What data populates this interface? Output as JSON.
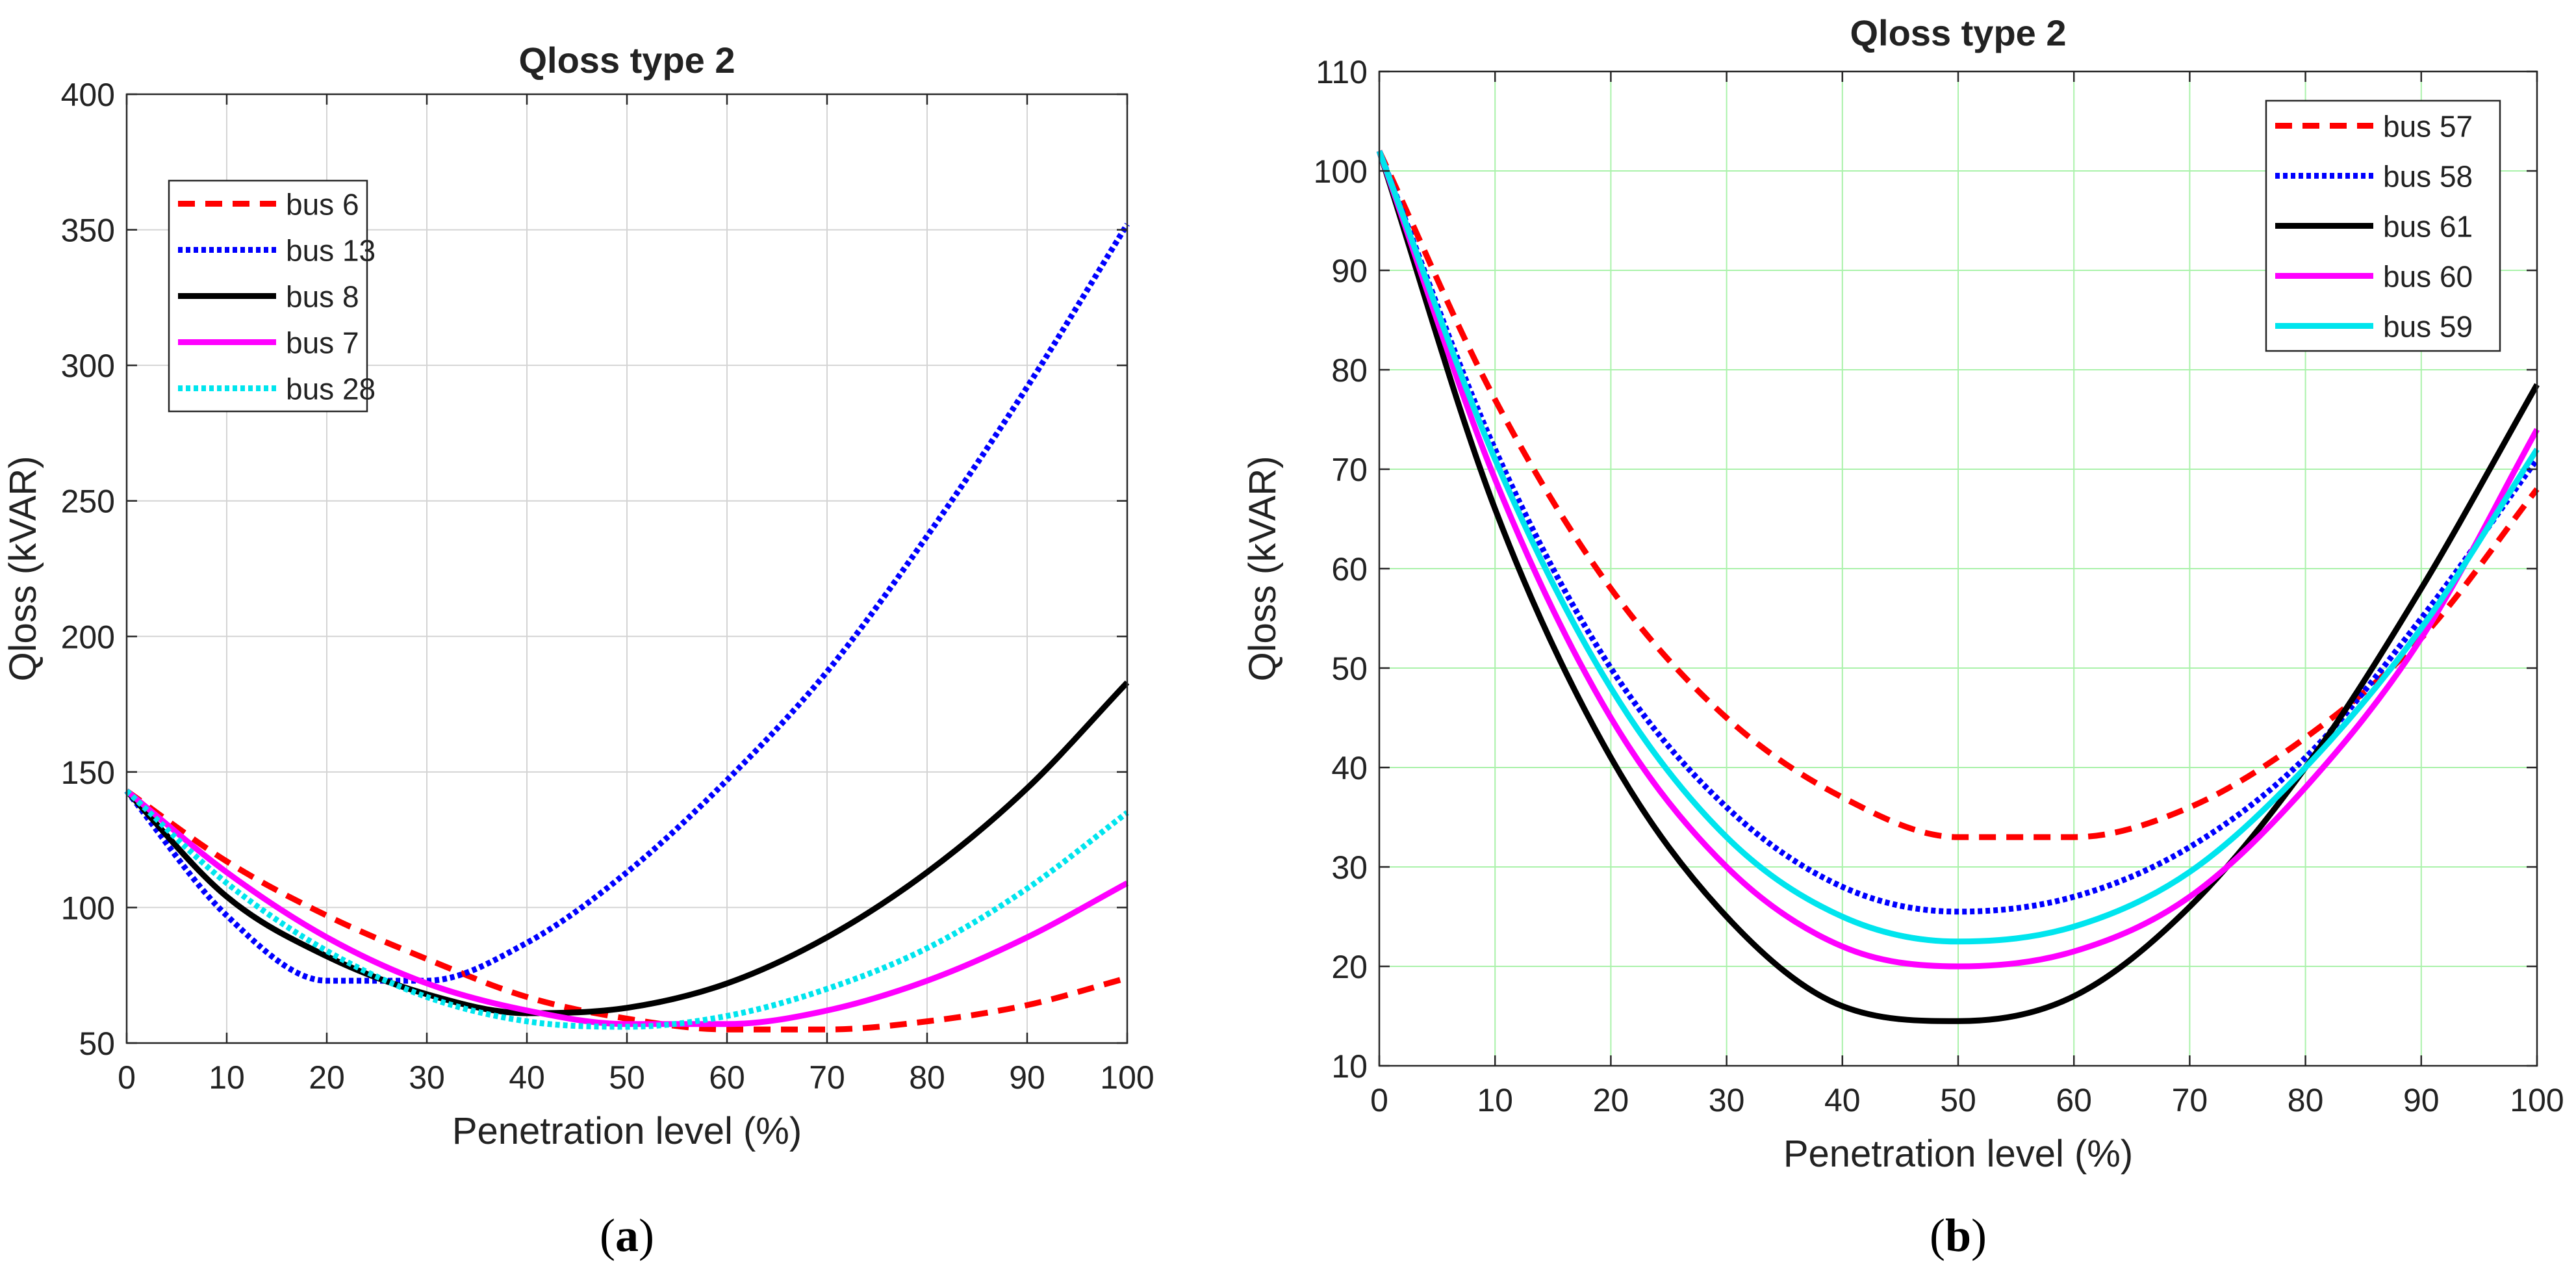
{
  "chart_data": [
    {
      "type": "line",
      "panel_label_prefix": "(",
      "panel_label": "a",
      "panel_label_suffix": ")",
      "title": "Qloss type 2",
      "xlabel": "Penetration level (%)",
      "ylabel": "Qloss (kVAR)",
      "xlim": [
        0,
        100
      ],
      "ylim": [
        50,
        400
      ],
      "xticks": [
        0,
        10,
        20,
        30,
        40,
        50,
        60,
        70,
        80,
        90,
        100
      ],
      "yticks": [
        50,
        100,
        150,
        200,
        250,
        300,
        350,
        400
      ],
      "grid": true,
      "legend_position": "top-left",
      "series": [
        {
          "name": "bus 6",
          "color": "#ff0000",
          "style": "dashed",
          "x": [
            0,
            10,
            20,
            30,
            40,
            50,
            60,
            70,
            80,
            90,
            100
          ],
          "values": [
            143,
            117,
            97,
            81,
            67,
            59,
            55,
            55,
            58,
            64,
            74
          ]
        },
        {
          "name": "bus 13",
          "color": "#0000ff",
          "style": "dotted",
          "x": [
            0,
            10,
            20,
            30,
            40,
            50,
            60,
            70,
            80,
            90,
            100
          ],
          "values": [
            143,
            97,
            73,
            73,
            87,
            113,
            147,
            187,
            237,
            292,
            352
          ]
        },
        {
          "name": "bus 8",
          "color": "#000000",
          "style": "solid",
          "x": [
            0,
            10,
            20,
            30,
            40,
            50,
            60,
            70,
            80,
            90,
            100
          ],
          "values": [
            143,
            104,
            82,
            68,
            61,
            63,
            72,
            89,
            113,
            144,
            183
          ]
        },
        {
          "name": "bus 7",
          "color": "#ff00ff",
          "style": "solid",
          "x": [
            0,
            10,
            20,
            30,
            40,
            50,
            60,
            70,
            80,
            90,
            100
          ],
          "values": [
            143,
            113,
            89,
            72,
            62,
            57,
            57,
            62,
            73,
            89,
            109
          ]
        },
        {
          "name": "bus 28",
          "color": "#00e5ee",
          "style": "dotted",
          "x": [
            0,
            10,
            20,
            30,
            40,
            50,
            60,
            70,
            80,
            90,
            100
          ],
          "values": [
            143,
            109,
            84,
            67,
            58,
            56,
            60,
            70,
            85,
            107,
            135
          ]
        }
      ]
    },
    {
      "type": "line",
      "panel_label_prefix": "(",
      "panel_label": "b",
      "panel_label_suffix": ")",
      "title": "Qloss type 2",
      "xlabel": "Penetration level (%)",
      "ylabel": "Qloss (kVAR)",
      "xlim": [
        0,
        100
      ],
      "ylim": [
        10,
        110
      ],
      "xticks": [
        0,
        10,
        20,
        30,
        40,
        50,
        60,
        70,
        80,
        90,
        100
      ],
      "yticks": [
        10,
        20,
        30,
        40,
        50,
        60,
        70,
        80,
        90,
        100,
        110
      ],
      "grid": true,
      "legend_position": "top-right",
      "series": [
        {
          "name": "bus 57",
          "color": "#ff0000",
          "style": "dashed",
          "x": [
            0,
            10,
            20,
            30,
            40,
            50,
            60,
            70,
            80,
            90,
            100
          ],
          "values": [
            102,
            77,
            58,
            45,
            37,
            33,
            33,
            36,
            43,
            53,
            68
          ]
        },
        {
          "name": "bus 58",
          "color": "#0000ff",
          "style": "dotted",
          "x": [
            0,
            10,
            20,
            30,
            40,
            50,
            60,
            70,
            80,
            90,
            100
          ],
          "values": [
            102,
            72,
            50,
            36,
            28,
            25.5,
            27,
            32,
            41,
            55,
            71
          ]
        },
        {
          "name": "bus 61",
          "color": "#000000",
          "style": "solid",
          "x": [
            0,
            10,
            20,
            30,
            40,
            50,
            60,
            70,
            80,
            90,
            100
          ],
          "values": [
            102,
            66,
            41,
            25,
            16,
            14.5,
            17,
            26,
            40,
            58,
            78.5
          ]
        },
        {
          "name": "bus 60",
          "color": "#ff00ff",
          "style": "solid",
          "x": [
            0,
            10,
            20,
            30,
            40,
            50,
            60,
            70,
            80,
            90,
            100
          ],
          "values": [
            102,
            69,
            45,
            30,
            22,
            20,
            21.5,
            27,
            38,
            53,
            74
          ]
        },
        {
          "name": "bus 59",
          "color": "#00e5ee",
          "style": "solid",
          "x": [
            0,
            10,
            20,
            30,
            40,
            50,
            60,
            70,
            80,
            90,
            100
          ],
          "values": [
            102,
            71,
            48,
            33,
            25,
            22.5,
            24,
            29.5,
            40,
            54,
            72
          ]
        }
      ]
    }
  ]
}
